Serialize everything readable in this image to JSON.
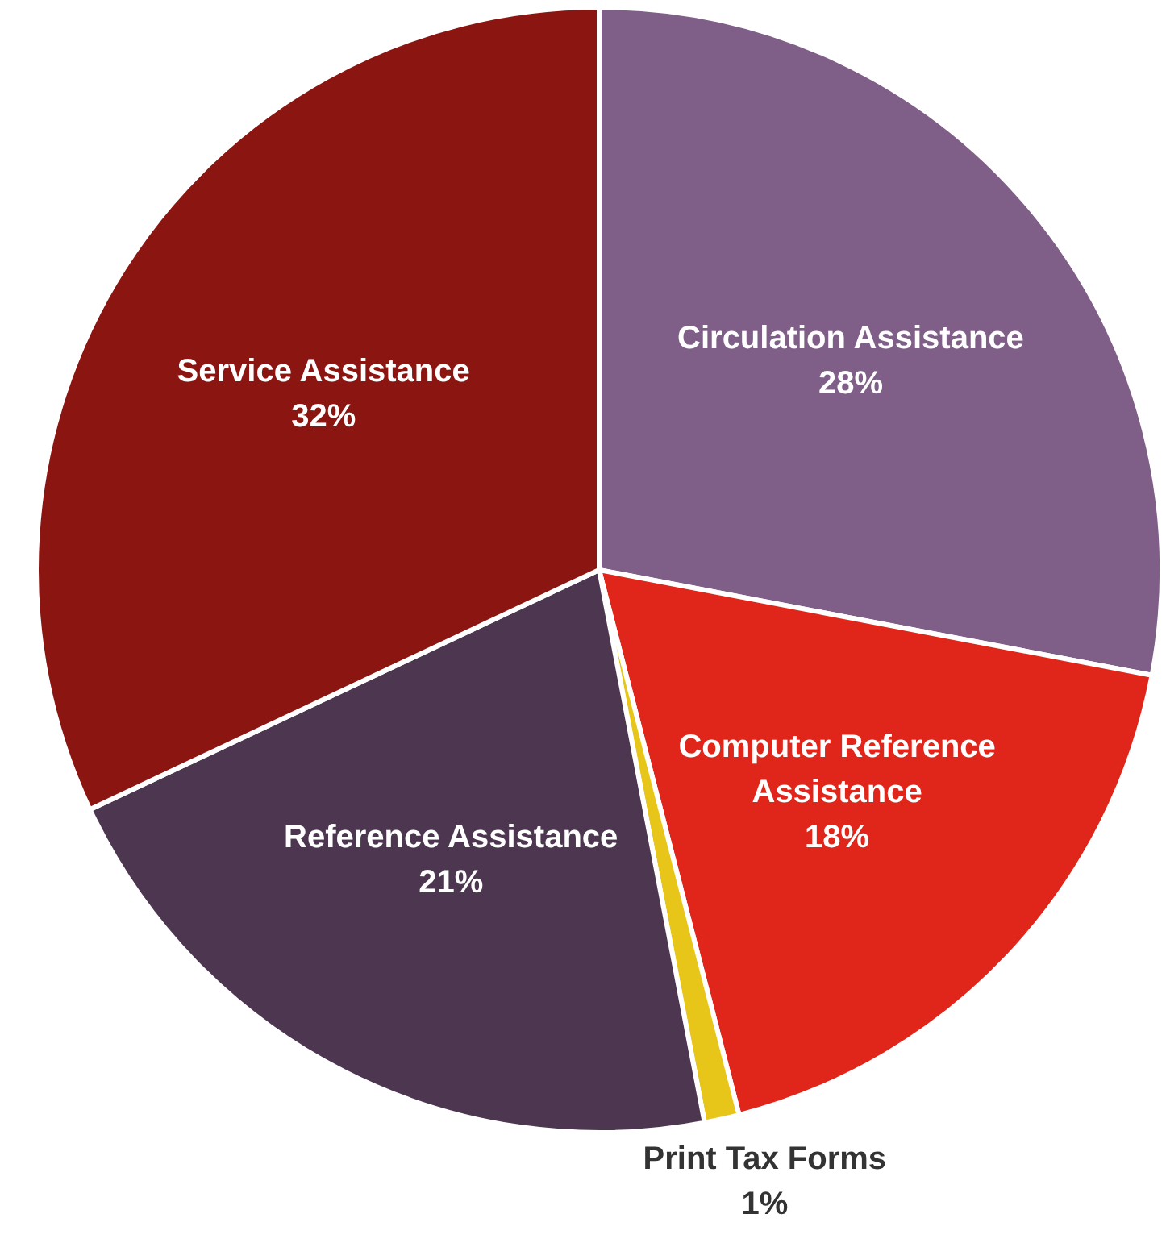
{
  "chart_data": {
    "type": "pie",
    "categories": [
      "Circulation Assistance",
      "Computer Reference Assistance",
      "Print Tax Forms",
      "Reference Assistance",
      "Service Assistance"
    ],
    "values": [
      28,
      18,
      1,
      21,
      32
    ],
    "colors": [
      "#7f5f87",
      "#e0261b",
      "#e8c619",
      "#4d3750",
      "#8b1511"
    ],
    "value_labels": [
      "28%",
      "18%",
      "1%",
      "21%",
      "32%"
    ],
    "legend": false
  }
}
